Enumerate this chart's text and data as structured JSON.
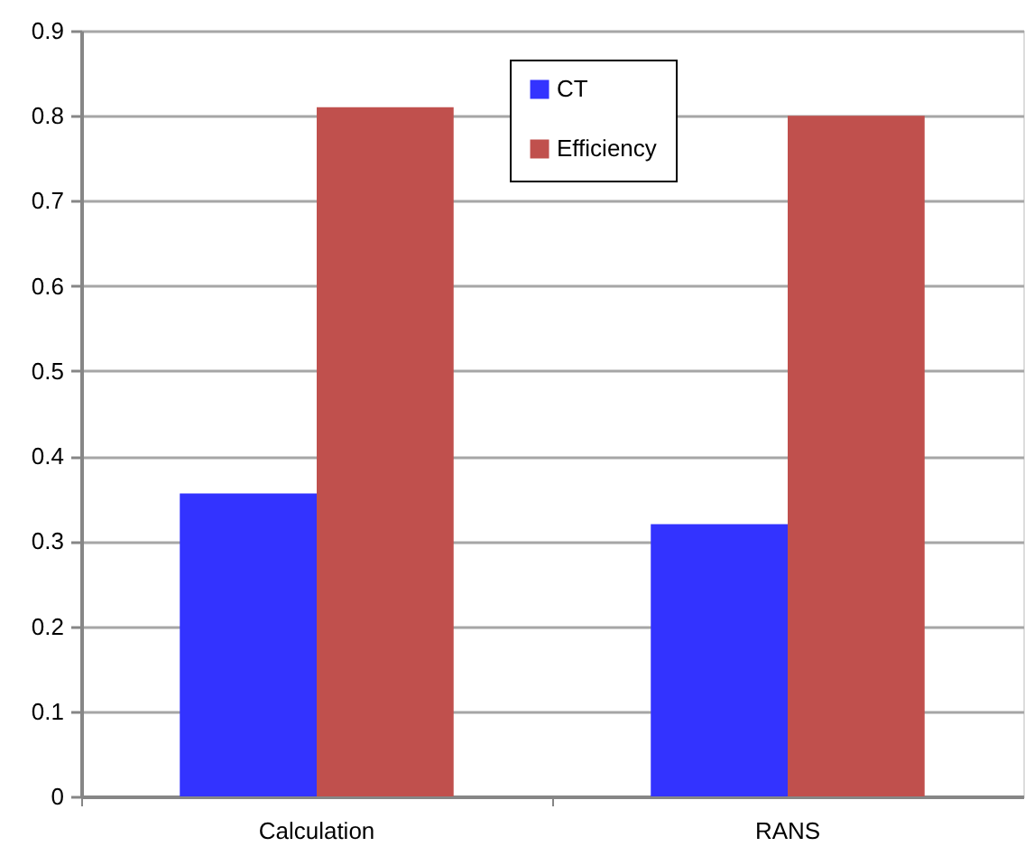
{
  "chart_data": {
    "type": "bar",
    "categories": [
      "Calculation",
      "RANS"
    ],
    "series": [
      {
        "name": "CT",
        "color": "#3333ff",
        "values": [
          0.356,
          0.32
        ]
      },
      {
        "name": "Efficiency",
        "color": "#c0504d",
        "values": [
          0.81,
          0.8
        ]
      }
    ],
    "ylim": [
      0,
      0.9
    ],
    "yticks": [
      0,
      0.1,
      0.2,
      0.3,
      0.4,
      0.5,
      0.6,
      0.7,
      0.8,
      0.9
    ],
    "grid": "y",
    "legend": "top"
  }
}
